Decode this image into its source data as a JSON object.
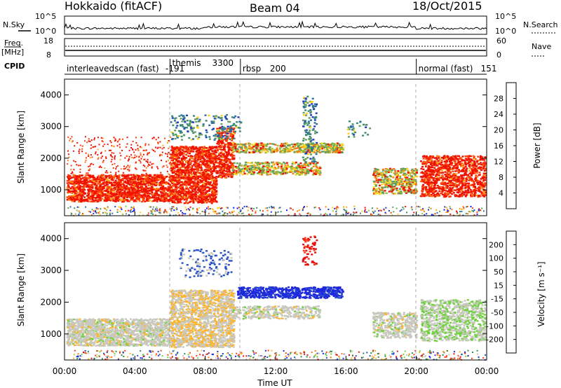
{
  "header": {
    "station": "Hokkaido (fitACF)",
    "beam": "Beam 04",
    "date": "18/Oct/2015"
  },
  "top_panel": {
    "left_label": "N.Sky",
    "right_label": "N.Search",
    "yticks_left": [
      "10^5",
      "10^0"
    ],
    "yticks_right": [
      "10^5",
      "10^0"
    ]
  },
  "freq_panel": {
    "left_label_1": "Freq.",
    "left_label_2": "[MHz]",
    "right_label": "Nave",
    "yticks_left": [
      "18",
      "8"
    ],
    "yticks_right": [
      "60",
      "0"
    ]
  },
  "cpid": {
    "label": "CPID",
    "segments": [
      {
        "name": "interleavedscan (fast)",
        "id": "-191",
        "start_h": 0
      },
      {
        "name": "themis",
        "id": "3300",
        "start_h": 6
      },
      {
        "name": "rbsp",
        "id": "200",
        "start_h": 10
      },
      {
        "name": "normal (fast)",
        "id": "151",
        "start_h": 20
      }
    ]
  },
  "chart_data": [
    {
      "type": "heatmap",
      "quantity": "power",
      "ylabel": "Slant Range [km]",
      "ylim": [
        180,
        4500
      ],
      "yticks": [
        "1000",
        "2000",
        "3000",
        "4000"
      ],
      "colorbar_label": "Power [dB]",
      "colorbar_ticks": [
        "4",
        "8",
        "12",
        "16",
        "20",
        "24",
        "28"
      ],
      "colorbar_colors": [
        "#1414ff",
        "#1e3cc8",
        "#2e6f9e",
        "#3c8c6e",
        "#64a05a",
        "#a0be3c",
        "#ffd21e",
        "#ffaa14",
        "#ff7814",
        "#ff3c0a",
        "#ee1100"
      ]
    },
    {
      "type": "heatmap",
      "quantity": "velocity",
      "ylabel": "Slant Range [km]",
      "ylim": [
        180,
        4500
      ],
      "yticks": [
        "1000",
        "2000",
        "3000",
        "4000"
      ],
      "colorbar_label": "Velocity [m s⁻¹]",
      "colorbar_ticks": [
        "200",
        "100",
        "50",
        "15",
        "-15",
        "-50",
        "-100",
        "-200"
      ],
      "colorbar_colors": [
        "#1e28dc",
        "#2850c8",
        "#2d8c50",
        "#6fd23c",
        "#c8c8c0",
        "#ffb428",
        "#ff7814",
        "#ff3c14",
        "#e60f0f"
      ]
    }
  ],
  "xaxis": {
    "label": "Time UT",
    "ticks": [
      "00:00",
      "04:00",
      "08:00",
      "12:00",
      "16:00",
      "20:00",
      "00:00"
    ],
    "xlim_hours": [
      0,
      24
    ]
  }
}
